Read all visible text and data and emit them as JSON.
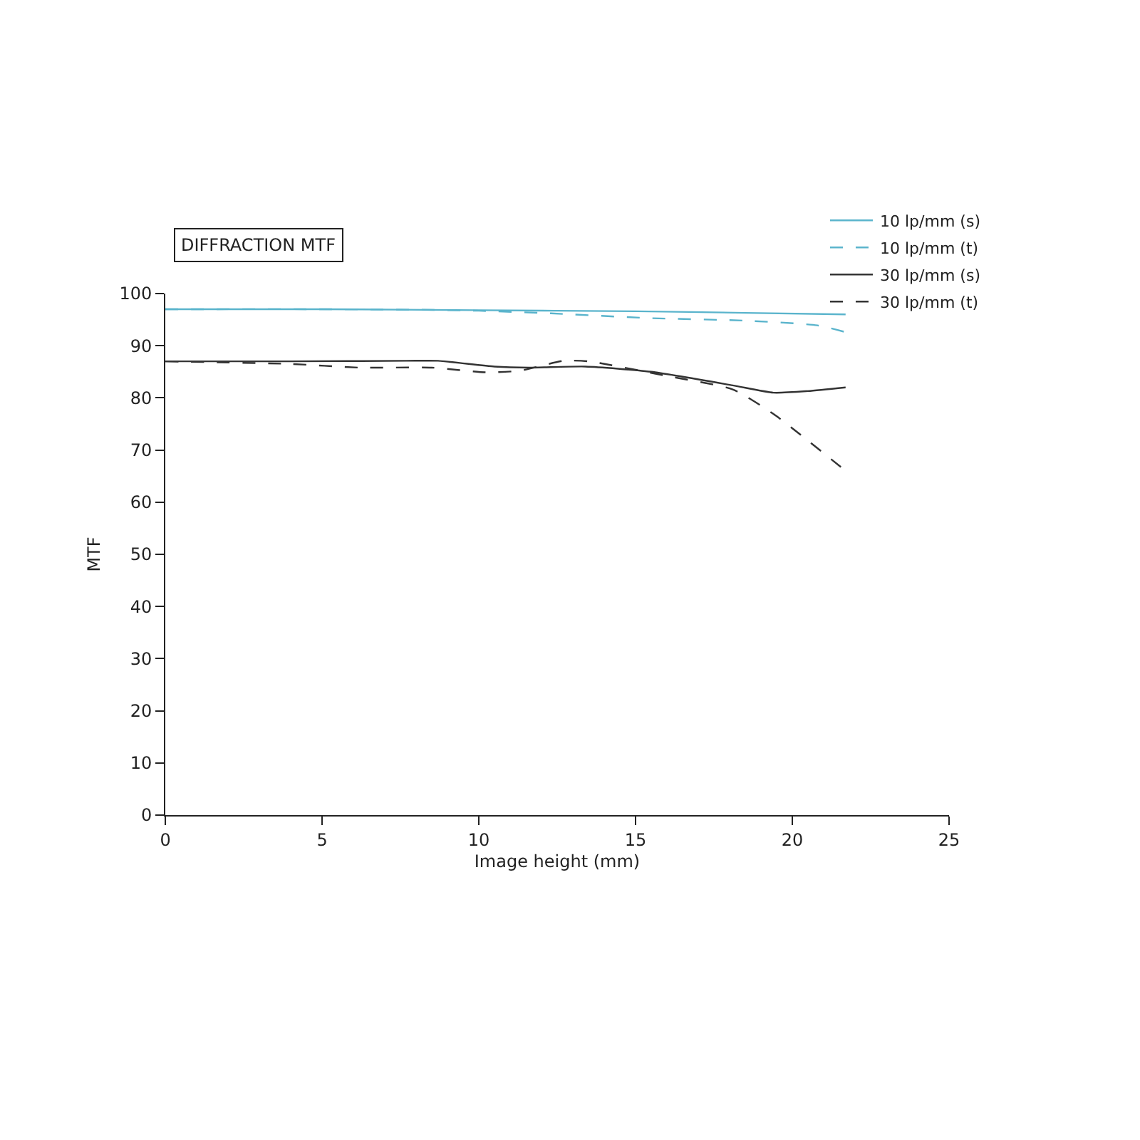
{
  "chart_data": {
    "type": "line",
    "title": "DIFFRACTION MTF",
    "xlabel": "Image height (mm)",
    "ylabel": "MTF",
    "xlim": [
      0,
      25
    ],
    "xticks": [
      0,
      5,
      10,
      15,
      20,
      25
    ],
    "ylim": [
      0,
      100
    ],
    "yticks": [
      0,
      10,
      20,
      30,
      40,
      50,
      60,
      70,
      80,
      90,
      100
    ],
    "legend": "top right",
    "marker": "none",
    "series": [
      {
        "name": "10 lp/mm (s)",
        "color": "#5ab4cc",
        "line_style": "solid",
        "x": [
          0,
          5,
          10,
          15,
          18.5,
          21.7
        ],
        "values": [
          97,
          97,
          96.8,
          96.6,
          96.3,
          96
        ]
      },
      {
        "name": "10 lp/mm (t)",
        "color": "#5ab4cc",
        "line_style": "dashed",
        "x": [
          0,
          5,
          8,
          10,
          12.3,
          15.4,
          18.5,
          20.8,
          21.7
        ],
        "values": [
          97,
          97,
          96.9,
          96.7,
          96.2,
          95.3,
          94.8,
          93.9,
          92.6
        ]
      },
      {
        "name": "30 lp/mm (s)",
        "color": "#333333",
        "line_style": "solid",
        "x": [
          0,
          4,
          7.7,
          8.7,
          10.5,
          11.6,
          13.4,
          15.5,
          18.1,
          19.4,
          20.5,
          21.7
        ],
        "values": [
          87,
          87,
          87.1,
          87.1,
          86,
          85.8,
          86,
          85,
          82.4,
          81,
          81.3,
          82
        ]
      },
      {
        "name": "30 lp/mm (t)",
        "color": "#333333",
        "line_style": "dashed",
        "x": [
          0,
          4,
          6.2,
          8.5,
          10.2,
          11.3,
          12.7,
          13.5,
          16,
          18.1,
          19.4,
          21.7
        ],
        "values": [
          87,
          86.5,
          85.8,
          85.8,
          84.9,
          85.2,
          87.1,
          87,
          84.2,
          81.6,
          76.9,
          66
        ]
      }
    ]
  }
}
